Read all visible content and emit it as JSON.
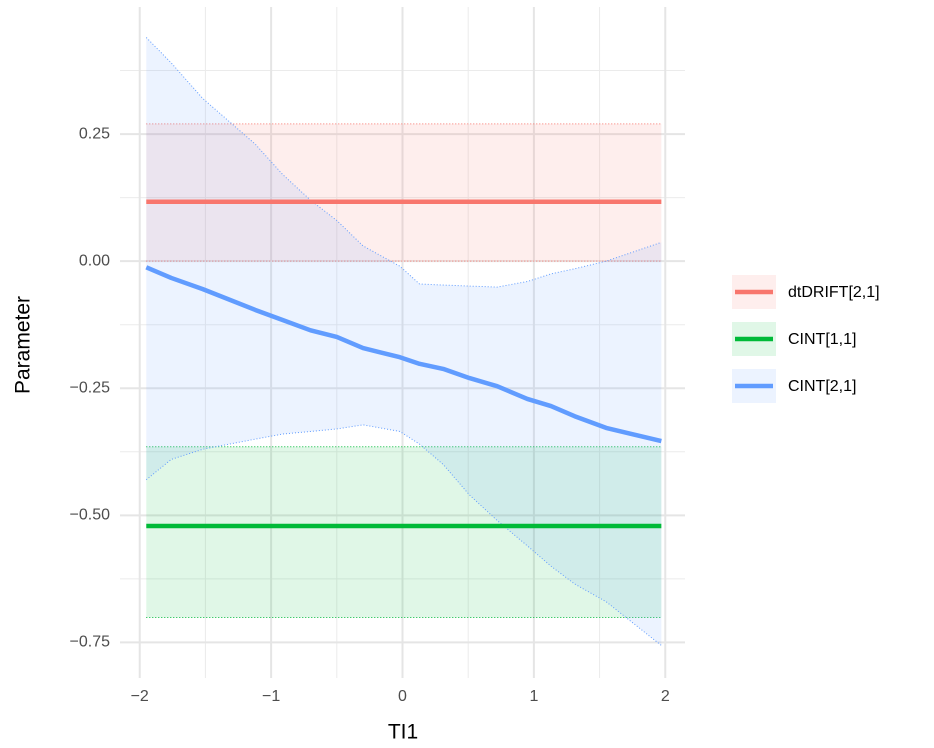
{
  "chart_data": {
    "type": "line",
    "x_label": "TI1",
    "y_label": "Parameter",
    "xlim": [
      -2.15,
      2.15
    ],
    "ylim": [
      -0.82,
      0.5
    ],
    "xticks": [
      {
        "value": -2,
        "label": "−2"
      },
      {
        "value": -1,
        "label": "−1"
      },
      0,
      1,
      2
    ],
    "yticks": [
      {
        "value": -0.75,
        "label": "−0.75"
      },
      {
        "value": -0.5,
        "label": "−0.50"
      },
      {
        "value": -0.25,
        "label": "−0.25"
      },
      {
        "value": 0,
        "label": "0.00"
      },
      0.25
    ],
    "xminor_ticks": [
      -1.5,
      -0.5,
      0.5,
      1.5
    ],
    "yminor_ticks": [
      -0.625,
      -0.375,
      -0.125,
      0.125,
      0.375
    ],
    "grid": true,
    "legend_position": "right",
    "series": [
      {
        "name": "dtDRIFT[2,1]",
        "color": "#F8766D",
        "x": [
          -1.95,
          1.97
        ],
        "values": [
          0.117,
          0.117
        ],
        "lower": [
          0,
          0
        ],
        "upper": [
          0.27,
          0.27
        ]
      },
      {
        "name": "CINT[1,1]",
        "color": "#00BA38",
        "x": [
          -1.95,
          1.97
        ],
        "values": [
          -0.521,
          -0.521
        ],
        "lower": [
          -0.701,
          -0.701
        ],
        "upper": [
          -0.365,
          -0.365
        ]
      },
      {
        "name": "CINT[2,1]",
        "color": "#619CFF",
        "x": [
          -1.95,
          -1.76,
          -1.52,
          -1.12,
          -0.91,
          -0.7,
          -0.5,
          -0.3,
          -0.02,
          0.13,
          0.31,
          0.51,
          0.72,
          0.95,
          1.13,
          1.31,
          1.55,
          1.97
        ],
        "values": [
          -0.012,
          -0.033,
          -0.055,
          -0.096,
          -0.116,
          -0.136,
          -0.149,
          -0.171,
          -0.189,
          -0.202,
          -0.212,
          -0.23,
          -0.246,
          -0.271,
          -0.285,
          -0.305,
          -0.328,
          -0.354
        ],
        "lower": [
          -0.43,
          -0.39,
          -0.37,
          -0.35,
          -0.34,
          -0.335,
          -0.33,
          -0.322,
          -0.335,
          -0.36,
          -0.4,
          -0.46,
          -0.51,
          -0.56,
          -0.6,
          -0.635,
          -0.67,
          -0.756
        ],
        "upper": [
          0.44,
          0.39,
          0.32,
          0.23,
          0.17,
          0.12,
          0.08,
          0.03,
          -0.01,
          -0.045,
          -0.047,
          -0.049,
          -0.051,
          -0.04,
          -0.025,
          -0.015,
          0.0,
          0.037
        ]
      }
    ]
  }
}
